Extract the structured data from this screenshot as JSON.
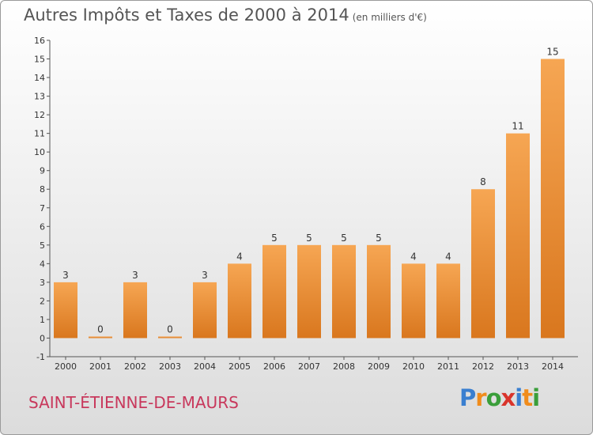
{
  "title": "Autres Impôts et Taxes de 2000 à 2014",
  "unit": "(en milliers d'€)",
  "commune": "SAINT-ÉTIENNE-DE-MAURS",
  "logo": {
    "letters": [
      "P",
      "r",
      "o",
      "x",
      "i",
      "t",
      "i"
    ],
    "colors": [
      "#3a7fd0",
      "#f08c1c",
      "#3a9e3a",
      "#d9342b",
      "#3a7fd0",
      "#f08c1c",
      "#3a9e3a"
    ]
  },
  "colors": {
    "bar_top": "#f6a653",
    "bar_bottom": "#d9771e",
    "axis": "#555555"
  },
  "chart_data": {
    "type": "bar",
    "categories": [
      "2000",
      "2001",
      "2002",
      "2003",
      "2004",
      "2005",
      "2006",
      "2007",
      "2008",
      "2009",
      "2010",
      "2011",
      "2012",
      "2013",
      "2014"
    ],
    "values": [
      3,
      0,
      3,
      0,
      3,
      4,
      5,
      5,
      5,
      5,
      4,
      4,
      8,
      11,
      15
    ],
    "ylim": [
      -1,
      16
    ],
    "yticks": [
      -1,
      0,
      1,
      2,
      3,
      4,
      5,
      6,
      7,
      8,
      9,
      10,
      11,
      12,
      13,
      14,
      15,
      16
    ],
    "grid": false
  }
}
